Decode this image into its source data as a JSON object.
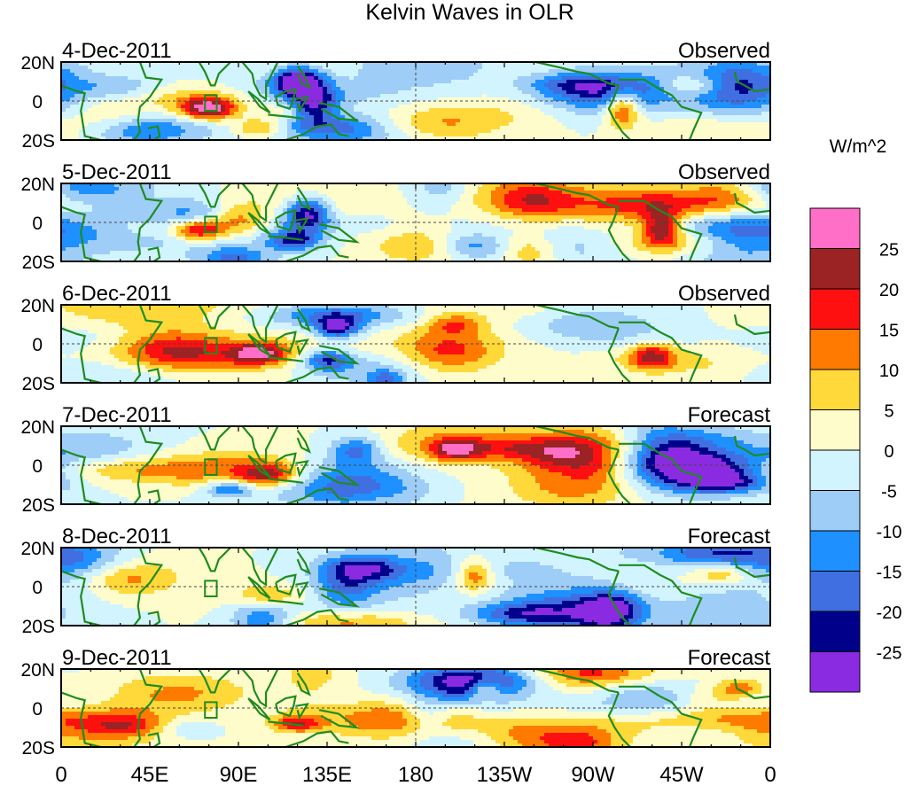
{
  "chart_data": {
    "type": "heatmap",
    "title": "Kelvin Waves in OLR",
    "units": "W/m^2",
    "y_tick_labels": [
      "20N",
      "0",
      "20S"
    ],
    "x_tick_labels": [
      "0",
      "45E",
      "90E",
      "135E",
      "180",
      "135W",
      "90W",
      "45W",
      "0"
    ],
    "panels": [
      {
        "date": "4-Dec-2011",
        "status": "Observed"
      },
      {
        "date": "5-Dec-2011",
        "status": "Observed"
      },
      {
        "date": "6-Dec-2011",
        "status": "Observed"
      },
      {
        "date": "7-Dec-2011",
        "status": "Forecast"
      },
      {
        "date": "8-Dec-2011",
        "status": "Forecast"
      },
      {
        "date": "9-Dec-2011",
        "status": "Forecast"
      }
    ],
    "colorbar": {
      "labels": [
        "25",
        "20",
        "15",
        "10",
        "5",
        "0",
        "-5",
        "-10",
        "-15",
        "-20",
        "-25"
      ],
      "colors": [
        "#ff6ec7",
        "#9b2323",
        "#ff1010",
        "#ff7a00",
        "#ffd83a",
        "#fffccc",
        "#d2f4ff",
        "#9ecdf7",
        "#1e90ff",
        "#3f6fe0",
        "#00008b",
        "#8a2be2"
      ]
    },
    "x_range_deg_east": [
      0,
      360
    ],
    "y_range_deg": [
      -20,
      20
    ]
  }
}
